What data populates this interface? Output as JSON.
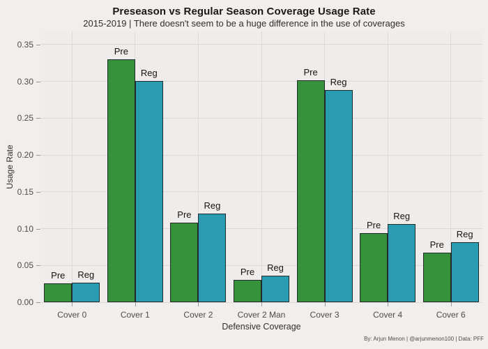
{
  "chart_data": {
    "type": "bar",
    "title": "Preseason vs Regular Season Coverage Usage Rate",
    "subtitle": "2015-2019 | There doesn't seem to be a huge difference in the use of coverages",
    "xlabel": "Defensive Coverage",
    "ylabel": "Usage Rate",
    "caption": "By: Arjun Menon | @arjunmenon100 | Data: PFF",
    "categories": [
      "Cover 0",
      "Cover 1",
      "Cover 2",
      "Cover 2 Man",
      "Cover 3",
      "Cover 4",
      "Cover 6"
    ],
    "series": [
      {
        "name": "Pre",
        "color": "#35923b",
        "values": [
          0.026,
          0.33,
          0.108,
          0.03,
          0.302,
          0.094,
          0.067
        ]
      },
      {
        "name": "Reg",
        "color": "#2a9cb2",
        "values": [
          0.027,
          0.301,
          0.12,
          0.036,
          0.288,
          0.106,
          0.082
        ]
      }
    ],
    "annotations": "Pre and Reg text labels above each bar, no legend",
    "ylim": [
      0,
      0.368
    ],
    "yticks": [
      0,
      0.05,
      0.1,
      0.15,
      0.2,
      0.25,
      0.3,
      0.35
    ],
    "ytick_labels": [
      "0.00",
      "0.05",
      "0.10",
      "0.15",
      "0.20",
      "0.25",
      "0.30",
      "0.35"
    ],
    "grid": "major horizontal and vertical gridlines, light gray on light panel",
    "legend_position": "none",
    "colors": {
      "background": "#f0efed",
      "panel": "#eeedeb",
      "gridline": "#dbdad8",
      "bar_border": "#22282b",
      "pre_green": "#35923b",
      "reg_teal": "#2a9cb2",
      "text_dark": "#191919",
      "axis_text": "#4c4c4c"
    }
  }
}
